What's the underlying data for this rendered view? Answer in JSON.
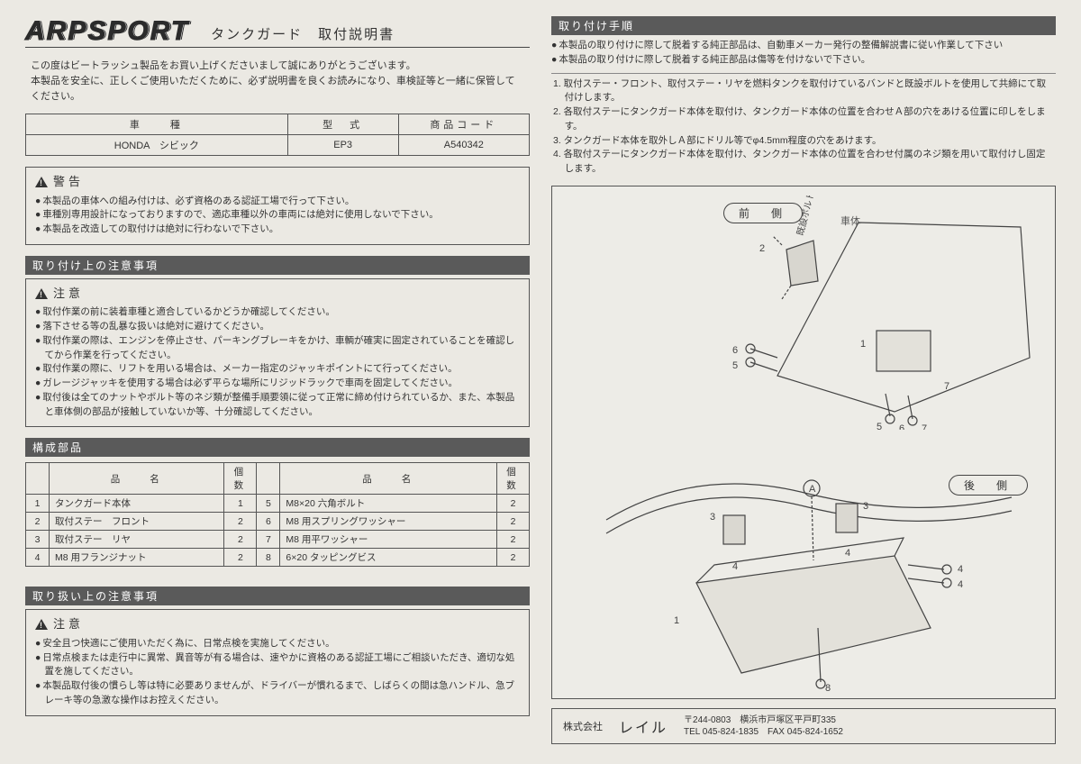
{
  "header": {
    "brand": "ARPSPORT",
    "doc_title": "タンクガード　取付説明書"
  },
  "intro": {
    "line1": "この度はビートラッシュ製品をお買い上げくださいまして誠にありがとうございます。",
    "line2": "本製品を安全に、正しくご使用いただくために、必ず説明書を良くお読みになり、車検証等と一緒に保管してください。"
  },
  "spec": {
    "h1": "車　　種",
    "h2": "型　式",
    "h3": "商品コード",
    "v1": "HONDA　シビック",
    "v2": "EP3",
    "v3": "A540342"
  },
  "warning": {
    "title": "警告",
    "items": [
      "本製品の車体への組み付けは、必ず資格のある認証工場で行って下さい。",
      "車種別専用設計になっておりますので、適応車種以外の車両には絶対に使用しないで下さい。",
      "本製品を改造しての取付けは絶対に行わないで下さい。"
    ]
  },
  "caution_install": {
    "bar": "取り付け上の注意事項",
    "title": "注意",
    "items": [
      "取付作業の前に装着車種と適合しているかどうか確認してください。",
      "落下させる等の乱暴な扱いは絶対に避けてください。",
      "取付作業の際は、エンジンを停止させ、パーキングブレーキをかけ、車輌が確実に固定されていることを確認してから作業を行ってください。",
      "取付作業の際に、リフトを用いる場合は、メーカー指定のジャッキポイントにて行ってください。",
      "ガレージジャッキを使用する場合は必ず平らな場所にリジッドラックで車両を固定してください。",
      "取付後は全てのナットやボルト等のネジ類が整備手順要領に従って正常に締め付けられているか、また、本製品と車体側の部品が接触していないか等、十分確認してください。"
    ]
  },
  "parts": {
    "bar": "構成部品",
    "h_name": "品　　名",
    "h_qty": "個数",
    "rows": [
      {
        "n": "1",
        "name": "タンクガード本体",
        "q": "1"
      },
      {
        "n": "2",
        "name": "取付ステー　フロント",
        "q": "2"
      },
      {
        "n": "3",
        "name": "取付ステー　リヤ",
        "q": "2"
      },
      {
        "n": "4",
        "name": "M8 用フランジナット",
        "q": "2"
      },
      {
        "n": "5",
        "name": "M8×20 六角ボルト",
        "q": "2"
      },
      {
        "n": "6",
        "name": "M8 用スプリングワッシャー",
        "q": "2"
      },
      {
        "n": "7",
        "name": "M8 用平ワッシャー",
        "q": "2"
      },
      {
        "n": "8",
        "name": "6×20 タッピングビス",
        "q": "2"
      }
    ]
  },
  "caution_use": {
    "bar": "取り扱い上の注意事項",
    "title": "注意",
    "items": [
      "安全且つ快適にご使用いただく為に、日常点検を実施してください。",
      "日常点検または走行中に異常、異音等が有る場合は、速やかに資格のある認証工場にご相談いただき、適切な処置を施してください。",
      "本製品取付後の慣らし等は特に必要ありませんが、ドライバーが慣れるまで、しばらくの間は急ハンドル、急ブレーキ等の急激な操作はお控えください。"
    ]
  },
  "procedure": {
    "bar": "取り付け手順",
    "pre": [
      "本製品の取り付けに際して脱着する純正部品は、自動車メーカー発行の整備解説書に従い作業して下さい",
      "本製品の取り付けに際して脱着する純正部品は傷等を付けないで下さい。"
    ],
    "steps": [
      "1. 取付ステー・フロント、取付ステー・リヤを燃料タンクを取付けているバンドと既設ボルトを使用して共締にて取付けします。",
      "2. 各取付ステーにタンクガード本体を取付け、タンクガード本体の位置を合わせＡ部の穴をあける位置に印しをします。",
      "3. タンクガード本体を取外しＡ部にドリル等でφ4.5mm程度の穴をあけます。",
      "4. 各取付ステーにタンクガード本体を取付け、タンクガード本体の位置を合わせ付属のネジ類を用いて取付けし固定します。"
    ]
  },
  "diagram": {
    "front_label": "前　側",
    "rear_label": "後　側",
    "body_label": "車体",
    "bolt_label": "既設ボルト"
  },
  "footer": {
    "company_prefix": "株式会社",
    "company": "レイル",
    "zip": "〒244-0803　横浜市戸塚区平戸町335",
    "tel": "TEL 045-824-1835　FAX 045-824-1652"
  }
}
